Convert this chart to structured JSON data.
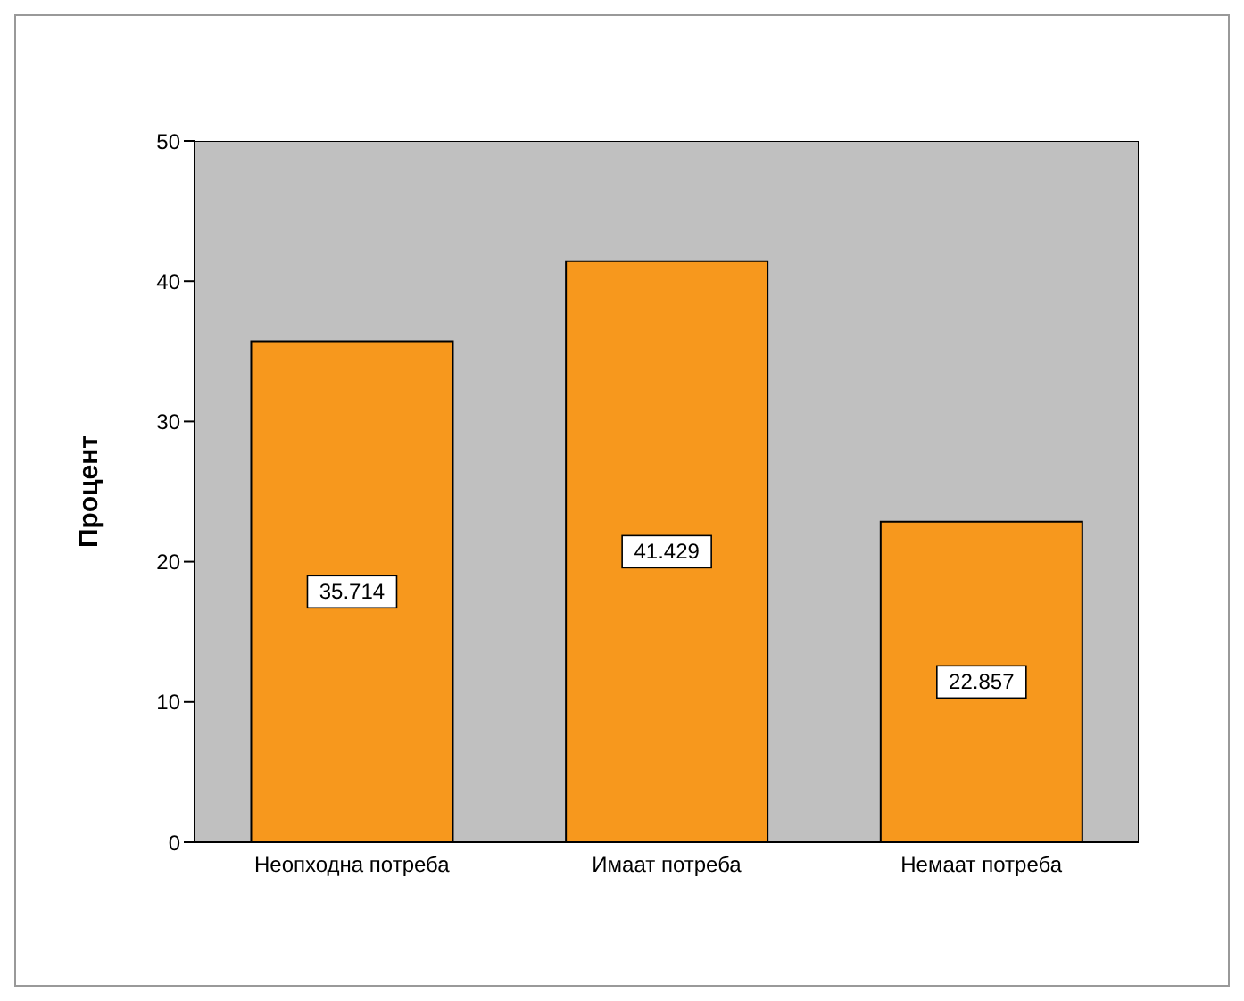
{
  "chart_data": {
    "type": "bar",
    "ylabel": "Процент",
    "categories": [
      "Неопходна потреба",
      "Имаат потреба",
      "Немаат потреба"
    ],
    "values": [
      35.714,
      41.429,
      22.857
    ],
    "color": "#f7981d",
    "ylim": [
      0,
      50
    ],
    "yticks": [
      0,
      10,
      20,
      30,
      40,
      50
    ],
    "data_labels": true
  }
}
